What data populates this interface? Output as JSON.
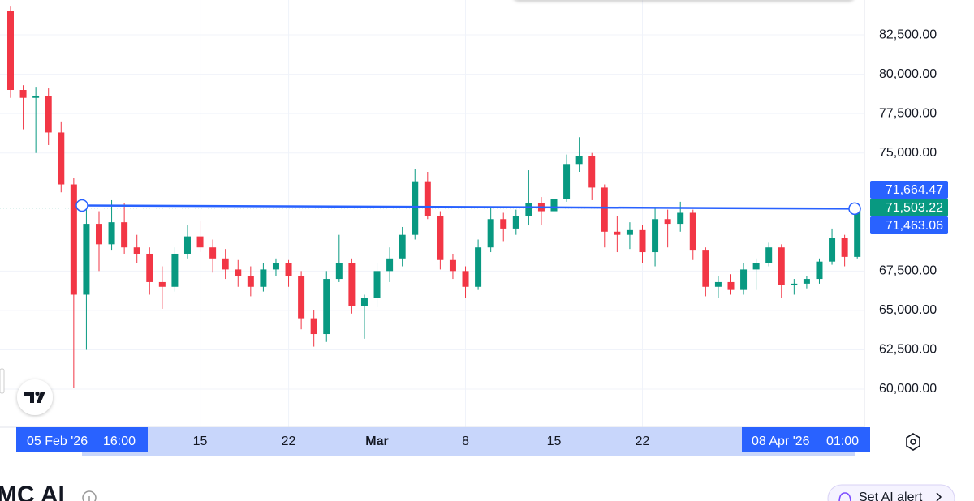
{
  "chart_data": {
    "type": "candlestick",
    "categories": [
      null,
      null,
      null,
      null,
      null,
      null,
      null,
      null,
      null,
      null,
      null,
      null,
      null,
      null,
      null,
      "15",
      null,
      null,
      null,
      null,
      null,
      null,
      "22",
      null,
      null,
      null,
      null,
      null,
      null,
      "Mar",
      null,
      null,
      null,
      null,
      null,
      null,
      "8",
      null,
      null,
      null,
      null,
      null,
      null,
      "15",
      null,
      null,
      null,
      null,
      null,
      null,
      "22",
      null,
      null,
      null,
      null,
      null,
      null,
      null,
      null,
      null,
      null,
      null,
      null,
      null,
      null,
      null,
      null,
      null
    ],
    "open": [
      84000,
      79000,
      78500,
      78600,
      76300,
      73000,
      66000,
      70500,
      69200,
      70600,
      69000,
      68600,
      66800,
      66500,
      68600,
      69700,
      69000,
      68300,
      67600,
      67200,
      66500,
      67600,
      68000,
      67200,
      64500,
      63500,
      67000,
      68000,
      65300,
      65800,
      67500,
      68300,
      69800,
      73200,
      71000,
      68200,
      67500,
      66500,
      69000,
      70800,
      70200,
      71000,
      71800,
      71300,
      72100,
      74300,
      74800,
      72800,
      70000,
      69800,
      70100,
      68700,
      70800,
      70500,
      71200,
      68800,
      66500,
      66800,
      66300,
      67600,
      68000,
      69000,
      66600,
      66700,
      67000,
      68100,
      69600,
      68400
    ],
    "high": [
      84300,
      79300,
      79200,
      79100,
      77000,
      73400,
      71600,
      71300,
      72000,
      71800,
      69800,
      69000,
      67800,
      69000,
      70400,
      70700,
      69500,
      68900,
      68200,
      67800,
      68000,
      68300,
      68200,
      67500,
      65000,
      67500,
      69800,
      68300,
      66000,
      68000,
      69000,
      70300,
      74000,
      73800,
      71300,
      68600,
      67800,
      69500,
      71500,
      71200,
      71400,
      73900,
      72200,
      72400,
      74900,
      76000,
      75000,
      73000,
      71000,
      70600,
      70400,
      71500,
      71400,
      71900,
      71400,
      69000,
      67200,
      67300,
      68000,
      68300,
      69300,
      69200,
      67000,
      67200,
      68300,
      70200,
      69800,
      71800
    ],
    "low": [
      78500,
      76500,
      75000,
      75500,
      72500,
      60100,
      62500,
      67500,
      68800,
      68600,
      68000,
      66000,
      65100,
      66200,
      68300,
      68700,
      67400,
      67000,
      66500,
      65900,
      66200,
      67200,
      66500,
      63800,
      62700,
      63000,
      66800,
      64800,
      63200,
      65200,
      66800,
      67800,
      69500,
      70800,
      67600,
      67000,
      65800,
      66300,
      68700,
      69400,
      69800,
      70400,
      70400,
      71000,
      71900,
      73800,
      72000,
      69000,
      68700,
      68900,
      68000,
      67800,
      69000,
      70000,
      68200,
      65900,
      65800,
      66000,
      66000,
      66300,
      67800,
      65800,
      66000,
      66400,
      66700,
      67900,
      67800,
      68300
    ],
    "close": [
      79000,
      78500,
      78600,
      76300,
      73000,
      66000,
      70500,
      69200,
      70600,
      69000,
      68600,
      66800,
      66500,
      68600,
      69700,
      69000,
      68300,
      67600,
      67200,
      66500,
      67600,
      68000,
      67200,
      64500,
      63500,
      67000,
      68000,
      65300,
      65800,
      67500,
      68300,
      69800,
      73200,
      71000,
      68200,
      67500,
      66500,
      69000,
      70800,
      70200,
      71000,
      71800,
      71300,
      72100,
      74300,
      74800,
      72800,
      70000,
      69800,
      70100,
      68700,
      70800,
      70500,
      71200,
      68800,
      66500,
      66800,
      66300,
      67600,
      68000,
      69000,
      66600,
      66700,
      67000,
      68100,
      69600,
      68400,
      71503.22
    ],
    "up_color": "#089981",
    "down_color": "#f23645",
    "ylim": [
      57580,
      84716
    ],
    "yticks": [
      {
        "value": 60000,
        "label": "60,000.00"
      },
      {
        "value": 62500,
        "label": "62,500.00"
      },
      {
        "value": 65000,
        "label": "65,000.00"
      },
      {
        "value": 67500,
        "label": "67,500.00"
      },
      {
        "value": 75000,
        "label": "75,000.00"
      },
      {
        "value": 77500,
        "label": "77,500.00"
      },
      {
        "value": 80000,
        "label": "80,000.00"
      },
      {
        "value": 82500,
        "label": "82,500.00"
      }
    ],
    "grid": true,
    "trend_line": {
      "color": "#2962ff",
      "start": {
        "value": 71664.47,
        "label": "71,664.47",
        "date": "05 Feb '26",
        "time": "16:00"
      },
      "end": {
        "value": 71463.06,
        "label": "71,463.06",
        "date": "08 Apr '26",
        "time": "01:00"
      }
    },
    "last_price": {
      "value": 71503.22,
      "label": "71,503.22",
      "color": "#089981"
    }
  },
  "footer": {
    "title": "MC AI",
    "button": "Set AI alert"
  }
}
